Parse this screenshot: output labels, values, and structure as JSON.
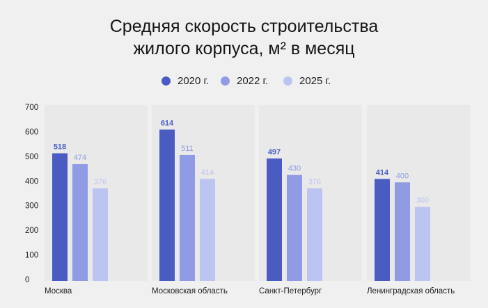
{
  "chart_data": {
    "type": "bar",
    "title": "Средняя скорость строительства жилого корпуса, м² в месяц",
    "title_lines": [
      "Средняя скорость строительства",
      "жилого корпуса, м² в месяц"
    ],
    "categories": [
      "Москва",
      "Московская область",
      "Санкт-Петербург",
      "Ленинградская область"
    ],
    "series": [
      {
        "name": "2020 г.",
        "values": [
          518,
          614,
          497,
          414
        ],
        "color": "#4a5cc2"
      },
      {
        "name": "2022 г.",
        "values": [
          474,
          511,
          430,
          400
        ],
        "color": "#8f9be3"
      },
      {
        "name": "2025 г.",
        "values": [
          376,
          414,
          376,
          300
        ],
        "color": "#bcc4f2"
      }
    ],
    "yticks": [
      0,
      100,
      200,
      300,
      400,
      500,
      600,
      700
    ],
    "ylim": [
      0,
      700
    ],
    "legend": "top-center",
    "grid": false,
    "xlabel": "",
    "ylabel": ""
  }
}
